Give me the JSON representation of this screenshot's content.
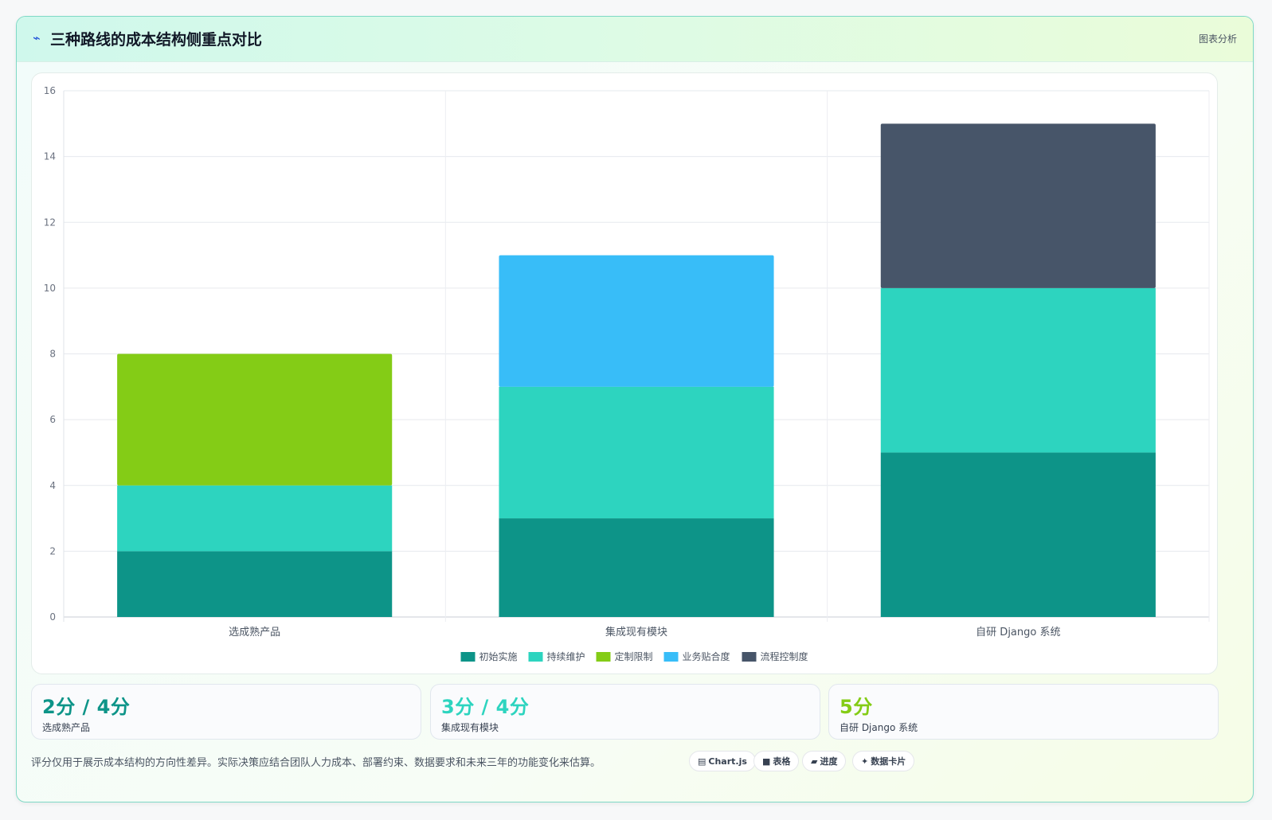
{
  "header": {
    "icon": "lightning-icon",
    "title": "三种路线的成本结构侧重点对比",
    "tag": "图表分析"
  },
  "chart_data": {
    "type": "bar",
    "stacked": true,
    "categories": [
      "选成熟产品",
      "集成现有模块",
      "自研 Django 系统"
    ],
    "series": [
      {
        "name": "初始实施",
        "color": "#0d9488",
        "values": [
          2,
          3,
          5
        ]
      },
      {
        "name": "持续维护",
        "color": "#2dd4bf",
        "values": [
          2,
          4,
          5
        ]
      },
      {
        "name": "定制限制",
        "color": "#84cc16",
        "values": [
          4,
          0,
          0
        ]
      },
      {
        "name": "业务贴合度",
        "color": "#38bdf8",
        "values": [
          0,
          4,
          0
        ]
      },
      {
        "name": "流程控制度",
        "color": "#475569",
        "values": [
          0,
          0,
          5
        ]
      }
    ],
    "ylim": [
      0,
      16
    ],
    "yticks": [
      "0",
      "2",
      "4",
      "6",
      "8",
      "10",
      "12",
      "14",
      "16"
    ],
    "grid": true,
    "legend_position": "bottom"
  },
  "stats": [
    {
      "value": "2分 / 4分",
      "label": "选成熟产品",
      "color": "#0d9488"
    },
    {
      "value": "3分 / 4分",
      "label": "集成现有模块",
      "color": "#2dd4bf"
    },
    {
      "value": "5分",
      "label": "自研 Django 系统",
      "color": "#84cc16"
    }
  ],
  "footnote": "评分仅用于展示成本结构的方向性差异。实际决策应结合团队人力成本、部署约束、数据要求和未来三年的功能变化来估算。",
  "chips": [
    {
      "icon": "chart-icon",
      "glyph": "▤",
      "label": "Chart.js"
    },
    {
      "icon": "table-icon",
      "glyph": "■",
      "label": "表格"
    },
    {
      "icon": "progress-icon",
      "glyph": "▰",
      "label": "进度"
    },
    {
      "icon": "sparkle-icon",
      "glyph": "✦",
      "label": "数据卡片"
    }
  ]
}
